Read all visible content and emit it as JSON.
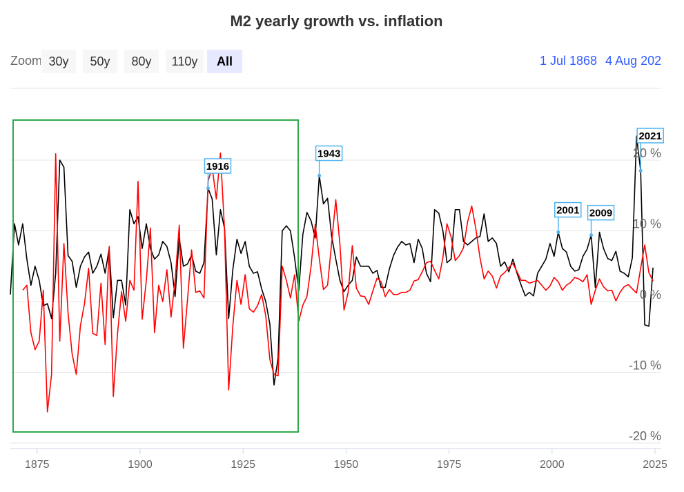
{
  "title": "M2 yearly growth vs. inflation",
  "range_selector": {
    "label": "Zoom",
    "buttons": [
      "30y",
      "50y",
      "80y",
      "110y",
      "All"
    ],
    "selected": "All",
    "from": "1 Jul 1868",
    "to": "4 Aug 202"
  },
  "colors": {
    "series_black": "#000000",
    "series_red": "#ff0000",
    "flag_border": "#4db3f0",
    "highlight_box": "#2daa4a",
    "range_text": "#335cff"
  },
  "chart_data": {
    "type": "line",
    "title": "M2 yearly growth vs. inflation",
    "xlim": [
      1868.5,
      2026.5
    ],
    "ylim": [
      -20,
      29
    ],
    "grid": true,
    "y_ticks": [
      -20,
      -10,
      0,
      10,
      20
    ],
    "y_tick_labels": [
      "-20 %",
      "-10 %",
      "0 %",
      "10 %",
      "20 %"
    ],
    "x_ticks": [
      1875,
      1900,
      1925,
      1950,
      1975,
      2000,
      2025
    ],
    "x_tick_labels": [
      "1875",
      "1900",
      "1925",
      "1950",
      "1975",
      "2000",
      "2025"
    ],
    "series": [
      {
        "color": "#000000",
        "start_year": 1868,
        "values": [
          1,
          11,
          8,
          11,
          6,
          2.3,
          5,
          3,
          -0.6,
          -0.3,
          -2.4,
          4,
          20,
          19,
          6.5,
          5.7,
          2,
          5,
          6.3,
          7,
          4,
          5,
          6.7,
          4,
          7.5,
          -2.3,
          3,
          3,
          -0.5,
          13,
          11,
          12,
          7.5,
          11,
          7.5,
          6,
          6.6,
          8.5,
          7.8,
          5.5,
          0.7,
          9,
          5,
          5.3,
          6.6,
          4.3,
          4,
          5.5,
          16,
          14.5,
          6.6,
          13,
          10.3,
          -2.4,
          4.5,
          8.8,
          6.8,
          8.5,
          5,
          4,
          4.2,
          1.8,
          0,
          -3.2,
          -11.8,
          -8,
          10,
          10.7,
          10,
          6.2,
          1.5,
          9.5,
          12.6,
          11.4,
          9,
          17.8,
          13.8,
          14.6,
          9.2,
          6,
          3,
          1.4,
          2.3,
          3,
          6.3,
          5,
          5,
          5,
          4,
          4.4,
          2,
          2,
          4.6,
          6.5,
          7.7,
          8.5,
          8,
          8.2,
          5.5,
          8.8,
          7.5,
          4,
          2.8,
          13,
          12.5,
          10,
          5.5,
          6,
          13,
          13,
          8.5,
          8,
          8.5,
          9,
          9.2,
          12.4,
          8.5,
          9,
          8.2,
          5,
          5.6,
          4.2,
          6,
          4,
          2.3,
          0.8,
          1.3,
          0.8,
          4,
          5,
          6,
          8.2,
          6.4,
          9.8,
          7.5,
          7,
          5,
          4.3,
          4.5,
          6.4,
          7.4,
          9.4,
          2,
          9.8,
          7.5,
          6.1,
          5.8,
          7.1,
          4.3,
          4,
          3.5,
          6.2,
          23.4,
          18.5,
          -3.3,
          -3.5,
          4.8
        ]
      },
      {
        "color": "#ff0000",
        "start_year": 1871,
        "values": [
          1.6,
          2.3,
          -4.4,
          -6.8,
          -5.6,
          1.6,
          -15.6,
          -10.3,
          20.9,
          -5.6,
          8.2,
          -1.6,
          -7.4,
          -10.3,
          -3.4,
          -0.3,
          4.7,
          -4.5,
          -4.8,
          2.6,
          -6.1,
          7.8,
          -13.4,
          -4.6,
          1.4,
          -2.8,
          3,
          1.6,
          17,
          -2.5,
          3,
          10.4,
          -4.4,
          2.3,
          0,
          4.5,
          -2.2,
          3,
          10.8,
          -6.6,
          0.2,
          7.3,
          1.3,
          1.5,
          0.5,
          17,
          19,
          14.5,
          21,
          10,
          -12.5,
          -3.5,
          3,
          -0.4,
          3.8,
          -1,
          -1.5,
          -0.6,
          1,
          -2,
          -8.2,
          -10.3,
          -10.5,
          5,
          3,
          0.5,
          3.8,
          -2.8,
          -0.5,
          0.7,
          5,
          10.9,
          6.1,
          1.7,
          2.3,
          8.3,
          14.4,
          8.1,
          -1.2,
          1.3,
          7.9,
          1.9,
          0.8,
          0.7,
          -0.4,
          1.5,
          3.3,
          2.8,
          0.7,
          1.7,
          1,
          1,
          1.3,
          1.3,
          1.6,
          2.9,
          3.1,
          4.2,
          5.5,
          5.7,
          4.4,
          3.2,
          6.2,
          11,
          9.1,
          5.8,
          6.5,
          7.6,
          11.3,
          13.5,
          10.3,
          6.2,
          3.2,
          4.3,
          3.6,
          1.9,
          3.6,
          4.1,
          4.8,
          5.4,
          4.2,
          3,
          3,
          2.6,
          2.8,
          3,
          2.3,
          1.6,
          2.2,
          3.4,
          2.8,
          1.6,
          2.3,
          2.7,
          3.4,
          3.2,
          2.8,
          3.8,
          -0.4,
          1.6,
          3.2,
          2.1,
          1.5,
          1.6,
          0.1,
          1.3,
          2.1,
          2.4,
          1.8,
          1.2,
          4.7,
          8,
          4.1,
          2.9
        ]
      }
    ],
    "flags": [
      {
        "label": "1916",
        "x": 1916,
        "series": 0
      },
      {
        "label": "1943",
        "x": 1943,
        "series": 0
      },
      {
        "label": "2001",
        "x": 2001,
        "series": 0
      },
      {
        "label": "2009",
        "x": 2009,
        "series": 0
      },
      {
        "label": "2021",
        "x": 2021,
        "series": 0
      }
    ]
  }
}
